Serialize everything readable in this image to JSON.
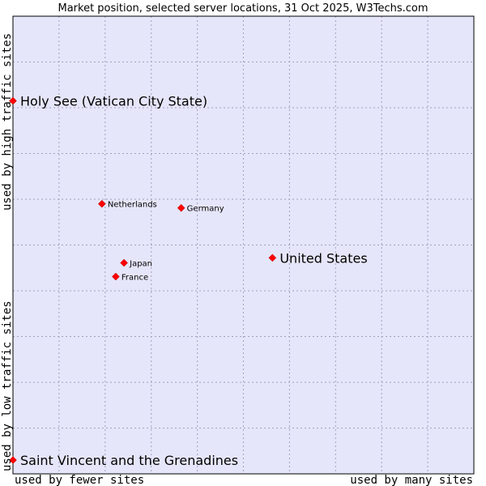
{
  "chart_data": {
    "type": "scatter",
    "title": "Market position, selected server locations, 31 Oct 2025, W3Techs.com",
    "xlabel_left": "used by fewer sites",
    "xlabel_right": "used by many sites",
    "ylabel_bottom": "used by low traffic sites",
    "ylabel_top": "used by high traffic sites",
    "xlim": [
      0,
      100
    ],
    "ylim": [
      0,
      100
    ],
    "grid": true,
    "colors": {
      "plot_bg": "#e6e6fa",
      "grid": "#a0a0c0",
      "marker": "#ff0000",
      "border": "#000000"
    },
    "points": [
      {
        "name": "Holy See (Vatican City State)",
        "x": 0.0,
        "y": 81.5,
        "size": "large"
      },
      {
        "name": "Netherlands",
        "x": 19.3,
        "y": 59.0,
        "size": "small"
      },
      {
        "name": "Germany",
        "x": 36.5,
        "y": 58.1,
        "size": "small"
      },
      {
        "name": "United States",
        "x": 56.3,
        "y": 47.2,
        "size": "large"
      },
      {
        "name": "Japan",
        "x": 24.1,
        "y": 46.1,
        "size": "small"
      },
      {
        "name": "France",
        "x": 22.3,
        "y": 43.1,
        "size": "small"
      },
      {
        "name": "Saint Vincent and the Grenadines",
        "x": 0.0,
        "y": 3.0,
        "size": "large"
      }
    ]
  }
}
